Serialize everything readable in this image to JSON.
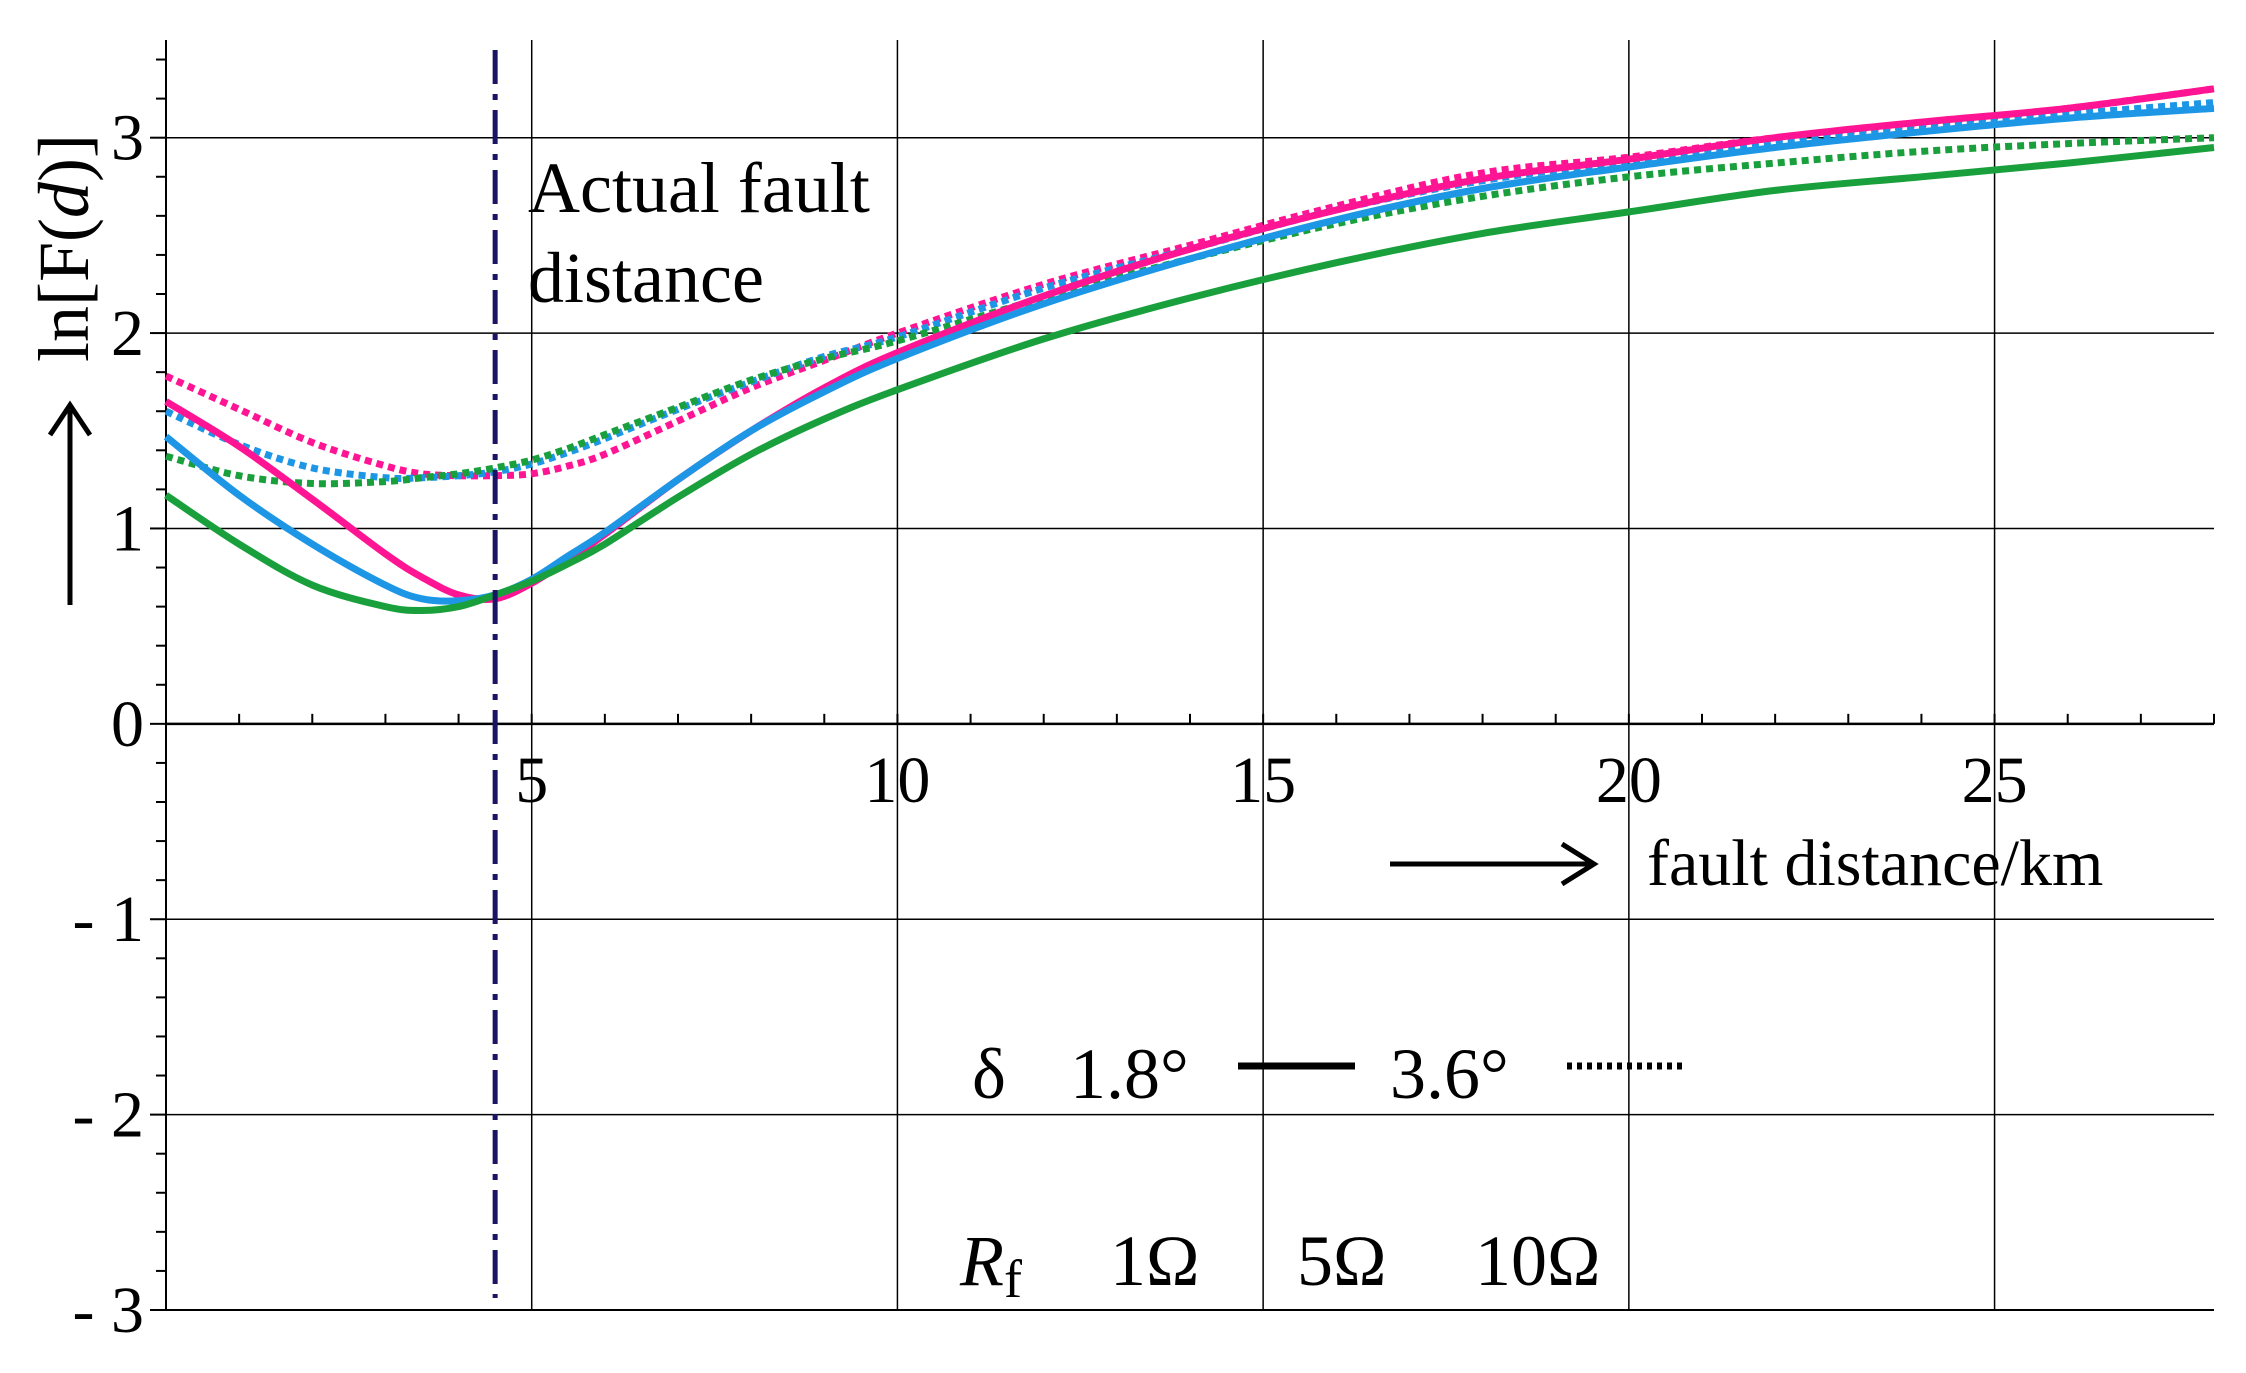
{
  "chart_data": {
    "type": "line",
    "title": "",
    "xlabel": "fault distance/km",
    "ylabel_prefix": "ln[F(",
    "ylabel_var": "d",
    "ylabel_suffix": ")]",
    "xlim": [
      0,
      28
    ],
    "ylim": [
      -3,
      3.5
    ],
    "xticks": [
      5,
      10,
      15,
      20,
      25
    ],
    "xtick_labels": [
      "5",
      "10",
      "15",
      "20",
      "25"
    ],
    "yticks": [
      -3,
      -2,
      -1,
      0,
      1,
      2,
      3
    ],
    "ytick_labels": [
      "- 3",
      "- 2",
      "- 1",
      "0",
      "1",
      "2",
      "3"
    ],
    "grid": true,
    "annotation": {
      "text_line1": "Actual fault",
      "text_line2": "distance",
      "x": 4.5,
      "color": "#1a1464"
    },
    "legend_delta": {
      "symbol": "δ",
      "solid_label": "1.8°",
      "dotted_label": "3.6°"
    },
    "legend_rf": {
      "symbol": "R",
      "subscript": "f",
      "items": [
        {
          "label": "1Ω",
          "color": "#ff1493"
        },
        {
          "label": "5Ω",
          "color": "#1e96e6"
        },
        {
          "label": "10Ω",
          "color": "#19a03c"
        }
      ]
    },
    "x": [
      0,
      1,
      2,
      3,
      3.5,
      4,
      4.5,
      5,
      5.5,
      6,
      7,
      8,
      9,
      10,
      12,
      14,
      16,
      18,
      20,
      22,
      24,
      26,
      28
    ],
    "series": [
      {
        "rf": "1Ω",
        "delta": "1.8°",
        "style": "solid",
        "color": "#ff1493",
        "values": [
          1.65,
          1.42,
          1.15,
          0.87,
          0.75,
          0.66,
          0.64,
          0.72,
          0.84,
          0.97,
          1.25,
          1.5,
          1.72,
          1.9,
          2.19,
          2.43,
          2.63,
          2.79,
          2.89,
          3.0,
          3.08,
          3.15,
          3.25
        ]
      },
      {
        "rf": "5Ω",
        "delta": "1.8°",
        "style": "solid",
        "color": "#1e96e6",
        "values": [
          1.47,
          1.17,
          0.92,
          0.71,
          0.64,
          0.63,
          0.66,
          0.74,
          0.86,
          0.98,
          1.25,
          1.5,
          1.7,
          1.87,
          2.15,
          2.38,
          2.58,
          2.74,
          2.85,
          2.95,
          3.03,
          3.1,
          3.15
        ]
      },
      {
        "rf": "10Ω",
        "delta": "1.8°",
        "style": "solid",
        "color": "#19a03c",
        "values": [
          1.17,
          0.92,
          0.71,
          0.6,
          0.58,
          0.6,
          0.66,
          0.73,
          0.82,
          0.92,
          1.16,
          1.38,
          1.56,
          1.71,
          1.97,
          2.18,
          2.36,
          2.51,
          2.62,
          2.73,
          2.8,
          2.87,
          2.95
        ]
      },
      {
        "rf": "1Ω",
        "delta": "3.6°",
        "style": "dotted",
        "color": "#ff1493",
        "values": [
          1.78,
          1.61,
          1.44,
          1.32,
          1.28,
          1.27,
          1.27,
          1.28,
          1.32,
          1.38,
          1.55,
          1.72,
          1.86,
          2.0,
          2.25,
          2.45,
          2.65,
          2.82,
          2.9,
          3.0,
          3.07,
          3.15,
          3.25
        ]
      },
      {
        "rf": "5Ω",
        "delta": "3.6°",
        "style": "dotted",
        "color": "#1e96e6",
        "values": [
          1.6,
          1.43,
          1.31,
          1.26,
          1.26,
          1.27,
          1.29,
          1.33,
          1.39,
          1.46,
          1.61,
          1.75,
          1.88,
          1.98,
          2.23,
          2.43,
          2.63,
          2.78,
          2.88,
          2.97,
          3.05,
          3.12,
          3.18
        ]
      },
      {
        "rf": "10Ω",
        "delta": "3.6°",
        "style": "dotted",
        "color": "#19a03c",
        "values": [
          1.37,
          1.27,
          1.23,
          1.24,
          1.26,
          1.28,
          1.31,
          1.35,
          1.41,
          1.48,
          1.62,
          1.76,
          1.87,
          1.96,
          2.18,
          2.38,
          2.56,
          2.7,
          2.8,
          2.87,
          2.93,
          2.97,
          3.0
        ]
      }
    ]
  }
}
